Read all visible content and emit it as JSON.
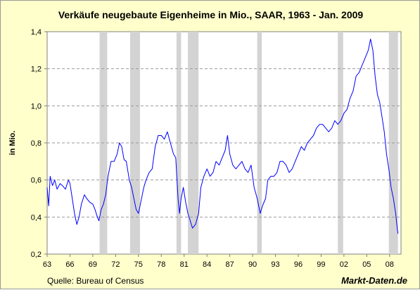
{
  "chart_data": {
    "type": "line",
    "title": "Verkäufe neugebaute Eigenheime in Mio., SAAR, 1963 - Jan. 2009",
    "ylabel": "in Mio.",
    "xlabel": "",
    "source": "Quelle: Bureau of Census",
    "brand": "Markt-Daten.de",
    "xlim": [
      1963,
      2009.5
    ],
    "ylim": [
      0.2,
      1.4
    ],
    "x_ticks": [
      1963,
      1966,
      1969,
      1972,
      1975,
      1978,
      1981,
      1984,
      1987,
      1990,
      1993,
      1996,
      1999,
      2002,
      2005,
      2008
    ],
    "x_tick_labels": [
      "63",
      "66",
      "69",
      "72",
      "75",
      "78",
      "81",
      "84",
      "87",
      "90",
      "93",
      "96",
      "99",
      "02",
      "05",
      "08"
    ],
    "y_ticks": [
      0.2,
      0.4,
      0.6,
      0.8,
      1.0,
      1.2,
      1.4
    ],
    "y_tick_labels": [
      "0,2",
      "0,4",
      "0,6",
      "0,8",
      "1,0",
      "1,2",
      "1,4"
    ],
    "grid": "horizontal dashed",
    "recessions": [
      [
        1969.9,
        1970.9
      ],
      [
        1973.9,
        1975.2
      ],
      [
        1980.0,
        1980.6
      ],
      [
        1981.5,
        1982.9
      ],
      [
        1990.6,
        1991.2
      ],
      [
        2001.2,
        2001.9
      ],
      [
        2007.9,
        2009.1
      ]
    ],
    "series": [
      {
        "color": "#0000ff",
        "points": [
          [
            1963.0,
            0.56
          ],
          [
            1963.2,
            0.46
          ],
          [
            1963.4,
            0.62
          ],
          [
            1963.7,
            0.57
          ],
          [
            1964.0,
            0.6
          ],
          [
            1964.3,
            0.55
          ],
          [
            1964.7,
            0.58
          ],
          [
            1965.0,
            0.57
          ],
          [
            1965.4,
            0.55
          ],
          [
            1965.8,
            0.6
          ],
          [
            1966.0,
            0.58
          ],
          [
            1966.3,
            0.5
          ],
          [
            1966.6,
            0.42
          ],
          [
            1966.9,
            0.36
          ],
          [
            1967.2,
            0.4
          ],
          [
            1967.5,
            0.47
          ],
          [
            1967.9,
            0.52
          ],
          [
            1968.2,
            0.5
          ],
          [
            1968.6,
            0.48
          ],
          [
            1969.0,
            0.47
          ],
          [
            1969.3,
            0.44
          ],
          [
            1969.6,
            0.4
          ],
          [
            1969.8,
            0.38
          ],
          [
            1970.1,
            0.44
          ],
          [
            1970.4,
            0.47
          ],
          [
            1970.7,
            0.52
          ],
          [
            1971.0,
            0.62
          ],
          [
            1971.4,
            0.7
          ],
          [
            1971.8,
            0.7
          ],
          [
            1972.2,
            0.74
          ],
          [
            1972.5,
            0.8
          ],
          [
            1972.8,
            0.78
          ],
          [
            1973.1,
            0.71
          ],
          [
            1973.4,
            0.7
          ],
          [
            1973.8,
            0.6
          ],
          [
            1974.1,
            0.56
          ],
          [
            1974.4,
            0.5
          ],
          [
            1974.7,
            0.44
          ],
          [
            1975.0,
            0.42
          ],
          [
            1975.3,
            0.48
          ],
          [
            1975.7,
            0.56
          ],
          [
            1976.0,
            0.6
          ],
          [
            1976.4,
            0.64
          ],
          [
            1976.8,
            0.66
          ],
          [
            1977.2,
            0.78
          ],
          [
            1977.6,
            0.84
          ],
          [
            1978.0,
            0.84
          ],
          [
            1978.4,
            0.82
          ],
          [
            1978.8,
            0.86
          ],
          [
            1979.2,
            0.8
          ],
          [
            1979.6,
            0.74
          ],
          [
            1979.9,
            0.72
          ],
          [
            1980.2,
            0.5
          ],
          [
            1980.4,
            0.42
          ],
          [
            1980.6,
            0.5
          ],
          [
            1980.9,
            0.56
          ],
          [
            1981.2,
            0.48
          ],
          [
            1981.5,
            0.42
          ],
          [
            1981.8,
            0.38
          ],
          [
            1982.1,
            0.34
          ],
          [
            1982.5,
            0.36
          ],
          [
            1982.9,
            0.42
          ],
          [
            1983.2,
            0.56
          ],
          [
            1983.6,
            0.62
          ],
          [
            1984.0,
            0.66
          ],
          [
            1984.4,
            0.62
          ],
          [
            1984.8,
            0.64
          ],
          [
            1985.2,
            0.7
          ],
          [
            1985.6,
            0.68
          ],
          [
            1986.0,
            0.72
          ],
          [
            1986.4,
            0.76
          ],
          [
            1986.7,
            0.84
          ],
          [
            1987.0,
            0.74
          ],
          [
            1987.4,
            0.68
          ],
          [
            1987.8,
            0.66
          ],
          [
            1988.2,
            0.68
          ],
          [
            1988.6,
            0.7
          ],
          [
            1989.0,
            0.66
          ],
          [
            1989.4,
            0.64
          ],
          [
            1989.8,
            0.68
          ],
          [
            1990.2,
            0.56
          ],
          [
            1990.6,
            0.5
          ],
          [
            1991.0,
            0.42
          ],
          [
            1991.3,
            0.46
          ],
          [
            1991.7,
            0.5
          ],
          [
            1992.0,
            0.6
          ],
          [
            1992.4,
            0.62
          ],
          [
            1992.8,
            0.62
          ],
          [
            1993.2,
            0.64
          ],
          [
            1993.6,
            0.7
          ],
          [
            1994.0,
            0.7
          ],
          [
            1994.4,
            0.68
          ],
          [
            1994.8,
            0.64
          ],
          [
            1995.2,
            0.66
          ],
          [
            1995.6,
            0.7
          ],
          [
            1996.0,
            0.74
          ],
          [
            1996.4,
            0.78
          ],
          [
            1996.8,
            0.76
          ],
          [
            1997.2,
            0.8
          ],
          [
            1997.6,
            0.82
          ],
          [
            1998.0,
            0.84
          ],
          [
            1998.4,
            0.88
          ],
          [
            1998.8,
            0.9
          ],
          [
            1999.2,
            0.9
          ],
          [
            1999.6,
            0.88
          ],
          [
            2000.0,
            0.86
          ],
          [
            2000.4,
            0.88
          ],
          [
            2000.8,
            0.92
          ],
          [
            2001.2,
            0.9
          ],
          [
            2001.6,
            0.92
          ],
          [
            2002.0,
            0.96
          ],
          [
            2002.4,
            0.98
          ],
          [
            2002.8,
            1.04
          ],
          [
            2003.2,
            1.08
          ],
          [
            2003.6,
            1.16
          ],
          [
            2004.0,
            1.18
          ],
          [
            2004.4,
            1.22
          ],
          [
            2004.8,
            1.26
          ],
          [
            2005.2,
            1.3
          ],
          [
            2005.5,
            1.36
          ],
          [
            2005.8,
            1.3
          ],
          [
            2006.1,
            1.16
          ],
          [
            2006.4,
            1.06
          ],
          [
            2006.7,
            1.02
          ],
          [
            2007.0,
            0.94
          ],
          [
            2007.3,
            0.86
          ],
          [
            2007.6,
            0.74
          ],
          [
            2007.9,
            0.66
          ],
          [
            2008.2,
            0.56
          ],
          [
            2008.5,
            0.5
          ],
          [
            2008.8,
            0.42
          ],
          [
            2009.0,
            0.34
          ],
          [
            2009.1,
            0.31
          ]
        ]
      }
    ]
  }
}
